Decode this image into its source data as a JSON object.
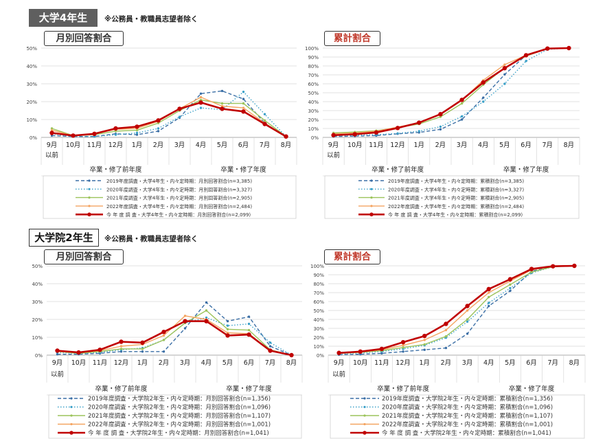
{
  "sections": [
    {
      "label": "大学4年生",
      "note": "※公務員・教職員志望者除く"
    },
    {
      "label": "大学院2年生",
      "note": "※公務員・教職員志望者除く"
    }
  ],
  "colors": {
    "s2019": "#3a6ea5",
    "s2020": "#3aa0c8",
    "s2021": "#9cc35a",
    "s2022": "#f4a460",
    "current": "#c00000"
  },
  "chart_data": [
    {
      "id": "u4-monthly",
      "type": "line",
      "title": "月別回答割合",
      "categories": [
        "9月",
        "10月",
        "11月",
        "12月",
        "1月",
        "2月",
        "3月",
        "4月",
        "5月",
        "6月",
        "7月",
        "8月"
      ],
      "category_sub": [
        "以前",
        "",
        "",
        "",
        "",
        "",
        "",
        "",
        "",
        "",
        "",
        ""
      ],
      "period_labels": [
        "卒業・修了前年度",
        "卒業・修了年度"
      ],
      "ylim": [
        0,
        50
      ],
      "yticks": [
        "0%",
        "10%",
        "20%",
        "30%",
        "40%",
        "50%"
      ],
      "series": [
        {
          "name": "2019年度調査・大学4年生・内々定時期：月別回答割合(n=3,385)",
          "style": "dash",
          "color": "#3a6ea5",
          "values": [
            1,
            0.5,
            0.5,
            2,
            1.5,
            3.5,
            11,
            24.5,
            26,
            21.5,
            8,
            0.5
          ]
        },
        {
          "name": "2020年度調査・大学4年生・内々定時期：月別回答割合(n=3,327)",
          "style": "dot",
          "color": "#3aa0c8",
          "values": [
            2,
            0.5,
            0.5,
            1.5,
            2.5,
            5,
            11.5,
            16.5,
            15.5,
            25.5,
            13,
            0.5
          ]
        },
        {
          "name": "2021年度調査・大学4年生・内々定時期：月別回答割合(n=2,905)",
          "style": "solid",
          "color": "#9cc35a",
          "values": [
            5,
            1,
            1.5,
            3.5,
            4,
            8,
            15,
            21,
            19,
            19,
            9.5,
            0.5
          ]
        },
        {
          "name": "2022年度調査・大学4年生・内々定時期：月別回答割合(n=2,484)",
          "style": "solid",
          "color": "#f4a460",
          "values": [
            4,
            1,
            2,
            4.5,
            5,
            9,
            16,
            22.5,
            17.5,
            16.5,
            8,
            0.5
          ]
        },
        {
          "name": "今 年 度 調 査・大学4年生・内々定時期：月別回答割合(n=2,099)",
          "style": "bold",
          "color": "#c00000",
          "values": [
            2.5,
            1,
            2,
            5,
            6,
            9.5,
            16,
            19.5,
            16,
            14.5,
            7.5,
            0.5
          ]
        }
      ]
    },
    {
      "id": "u4-cumulative",
      "type": "line",
      "title": "累計割合",
      "categories": [
        "9月",
        "10月",
        "11月",
        "12月",
        "1月",
        "2月",
        "3月",
        "4月",
        "5月",
        "6月",
        "7月",
        "8月"
      ],
      "category_sub": [
        "以前",
        "",
        "",
        "",
        "",
        "",
        "",
        "",
        "",
        "",
        "",
        ""
      ],
      "period_labels": [
        "卒業・修了前年度",
        "卒業・修了年度"
      ],
      "ylim": [
        0,
        100
      ],
      "yticks": [
        "0%",
        "10%",
        "20%",
        "30%",
        "40%",
        "50%",
        "60%",
        "70%",
        "80%",
        "90%",
        "100%"
      ],
      "series": [
        {
          "name": "2019年度調査・大学4年生・内々定時期：累積割合(n=3,385)",
          "style": "dash",
          "color": "#3a6ea5",
          "values": [
            1,
            1.5,
            2,
            4,
            5.5,
            9,
            20,
            44.5,
            70.5,
            92,
            99.5,
            100
          ]
        },
        {
          "name": "2020年度調査・大学4年生・内々定時期：累積割合(n=3,327)",
          "style": "dot",
          "color": "#3aa0c8",
          "values": [
            2,
            2.5,
            3,
            4.5,
            7,
            12,
            23.5,
            40,
            60,
            85.5,
            98.5,
            100
          ]
        },
        {
          "name": "2021年度調査・大学4年生・内々定時期：累積割合(n=2,905)",
          "style": "solid",
          "color": "#9cc35a",
          "values": [
            5,
            6,
            7.5,
            11,
            15,
            23,
            38,
            59,
            78,
            91,
            99.5,
            100
          ]
        },
        {
          "name": "2022年度調査・大学4年生・内々定時期：累積割合(n=2,484)",
          "style": "solid",
          "color": "#f4a460",
          "values": [
            4,
            5,
            7,
            11.5,
            16.5,
            25.5,
            41.5,
            64,
            81.5,
            92,
            99.5,
            100
          ]
        },
        {
          "name": "今 年 度 調 査・大学4年生・内々定時期：累積割合(n=2,099)",
          "style": "bold",
          "color": "#c00000",
          "values": [
            2.5,
            3.5,
            5.5,
            10.5,
            16.5,
            26,
            42,
            61.5,
            77.5,
            92,
            99.5,
            100
          ]
        }
      ]
    },
    {
      "id": "g2-monthly",
      "type": "line",
      "title": "月別回答割合",
      "categories": [
        "9月",
        "10月",
        "11月",
        "12月",
        "1月",
        "2月",
        "3月",
        "4月",
        "5月",
        "6月",
        "7月",
        "8月"
      ],
      "category_sub": [
        "以前",
        "",
        "",
        "",
        "",
        "",
        "",
        "",
        "",
        "",
        "",
        ""
      ],
      "period_labels": [
        "卒業・修了前年度",
        "卒業・修了年度"
      ],
      "ylim": [
        0,
        50
      ],
      "yticks": [
        "0%",
        "10%",
        "20%",
        "30%",
        "40%",
        "50%"
      ],
      "series": [
        {
          "name": "2019年度調査・大学院2年生・内々定時期：月別回答割合(n=1,356)",
          "style": "dash",
          "color": "#3a6ea5",
          "values": [
            0.5,
            0.5,
            1,
            2,
            2,
            2,
            15,
            29.5,
            19,
            21.5,
            5,
            0
          ]
        },
        {
          "name": "2020年度調査・大学院2年生・内々定時期：月別回答割合(n=1,096)",
          "style": "dot",
          "color": "#3aa0c8",
          "values": [
            1.5,
            1,
            1.5,
            3,
            4,
            8.5,
            18,
            21,
            16.5,
            17.5,
            7,
            0
          ]
        },
        {
          "name": "2021年度調査・大学院2年生・内々定時期：月別回答割合(n=1,107)",
          "style": "solid",
          "color": "#9cc35a",
          "values": [
            2,
            1,
            2,
            3.5,
            3.5,
            8.5,
            18,
            25,
            14.5,
            14,
            3,
            0
          ]
        },
        {
          "name": "2022年度調査・大学院2年生・内々定時期：月別回答割合(n=1,001)",
          "style": "solid",
          "color": "#f4a460",
          "values": [
            2,
            1.5,
            2.5,
            5,
            6,
            11,
            22,
            20,
            12.5,
            12,
            2.5,
            0
          ]
        },
        {
          "name": "今 年 度 調 査・大学院2年生・内々定時期：月別回答割合(n=1,041)",
          "style": "bold",
          "color": "#c00000",
          "values": [
            2.5,
            1.5,
            3,
            7.5,
            7,
            13,
            19,
            19,
            11,
            11.5,
            2.5,
            0
          ]
        }
      ]
    },
    {
      "id": "g2-cumulative",
      "type": "line",
      "title": "累計割合",
      "categories": [
        "9月",
        "10月",
        "11月",
        "12月",
        "1月",
        "2月",
        "3月",
        "4月",
        "5月",
        "6月",
        "7月",
        "8月"
      ],
      "category_sub": [
        "以前",
        "",
        "",
        "",
        "",
        "",
        "",
        "",
        "",
        "",
        "",
        ""
      ],
      "period_labels": [
        "卒業・修了前年度",
        "卒業・修了年度"
      ],
      "ylim": [
        0,
        100
      ],
      "yticks": [
        "0%",
        "10%",
        "20%",
        "30%",
        "40%",
        "50%",
        "60%",
        "70%",
        "80%",
        "90%",
        "100%"
      ],
      "series": [
        {
          "name": "2019年度調査・大学院2年生・内々定時期：累積割合(n=1,356)",
          "style": "dash",
          "color": "#3a6ea5",
          "values": [
            0.5,
            1,
            2,
            4,
            6,
            8,
            24,
            55,
            72,
            94,
            99,
            100
          ]
        },
        {
          "name": "2020年度調査・大学院2年生・内々定時期：累積割合(n=1,096)",
          "style": "dot",
          "color": "#3aa0c8",
          "values": [
            1.5,
            2.5,
            4,
            7,
            11,
            19.5,
            37.5,
            58.5,
            75,
            92,
            99,
            100
          ]
        },
        {
          "name": "2021年度調査・大学院2年生・内々定時期：累積割合(n=1,107)",
          "style": "solid",
          "color": "#9cc35a",
          "values": [
            2,
            3,
            5,
            8.5,
            12,
            21,
            40,
            65,
            79,
            93,
            99,
            100
          ]
        },
        {
          "name": "2022年度調査・大学院2年生・内々定時期：累積割合(n=1,001)",
          "style": "solid",
          "color": "#f4a460",
          "values": [
            2,
            3.5,
            6,
            11,
            17,
            28,
            50,
            70,
            83,
            95.5,
            99.5,
            100
          ]
        },
        {
          "name": "今 年 度 調 査・大学院2年生・内々定時期：累積割合(n=1,041)",
          "style": "bold",
          "color": "#c00000",
          "values": [
            2.5,
            4,
            7,
            14.5,
            21.5,
            35,
            55,
            74,
            85,
            96.5,
            99.5,
            100
          ]
        }
      ]
    }
  ]
}
